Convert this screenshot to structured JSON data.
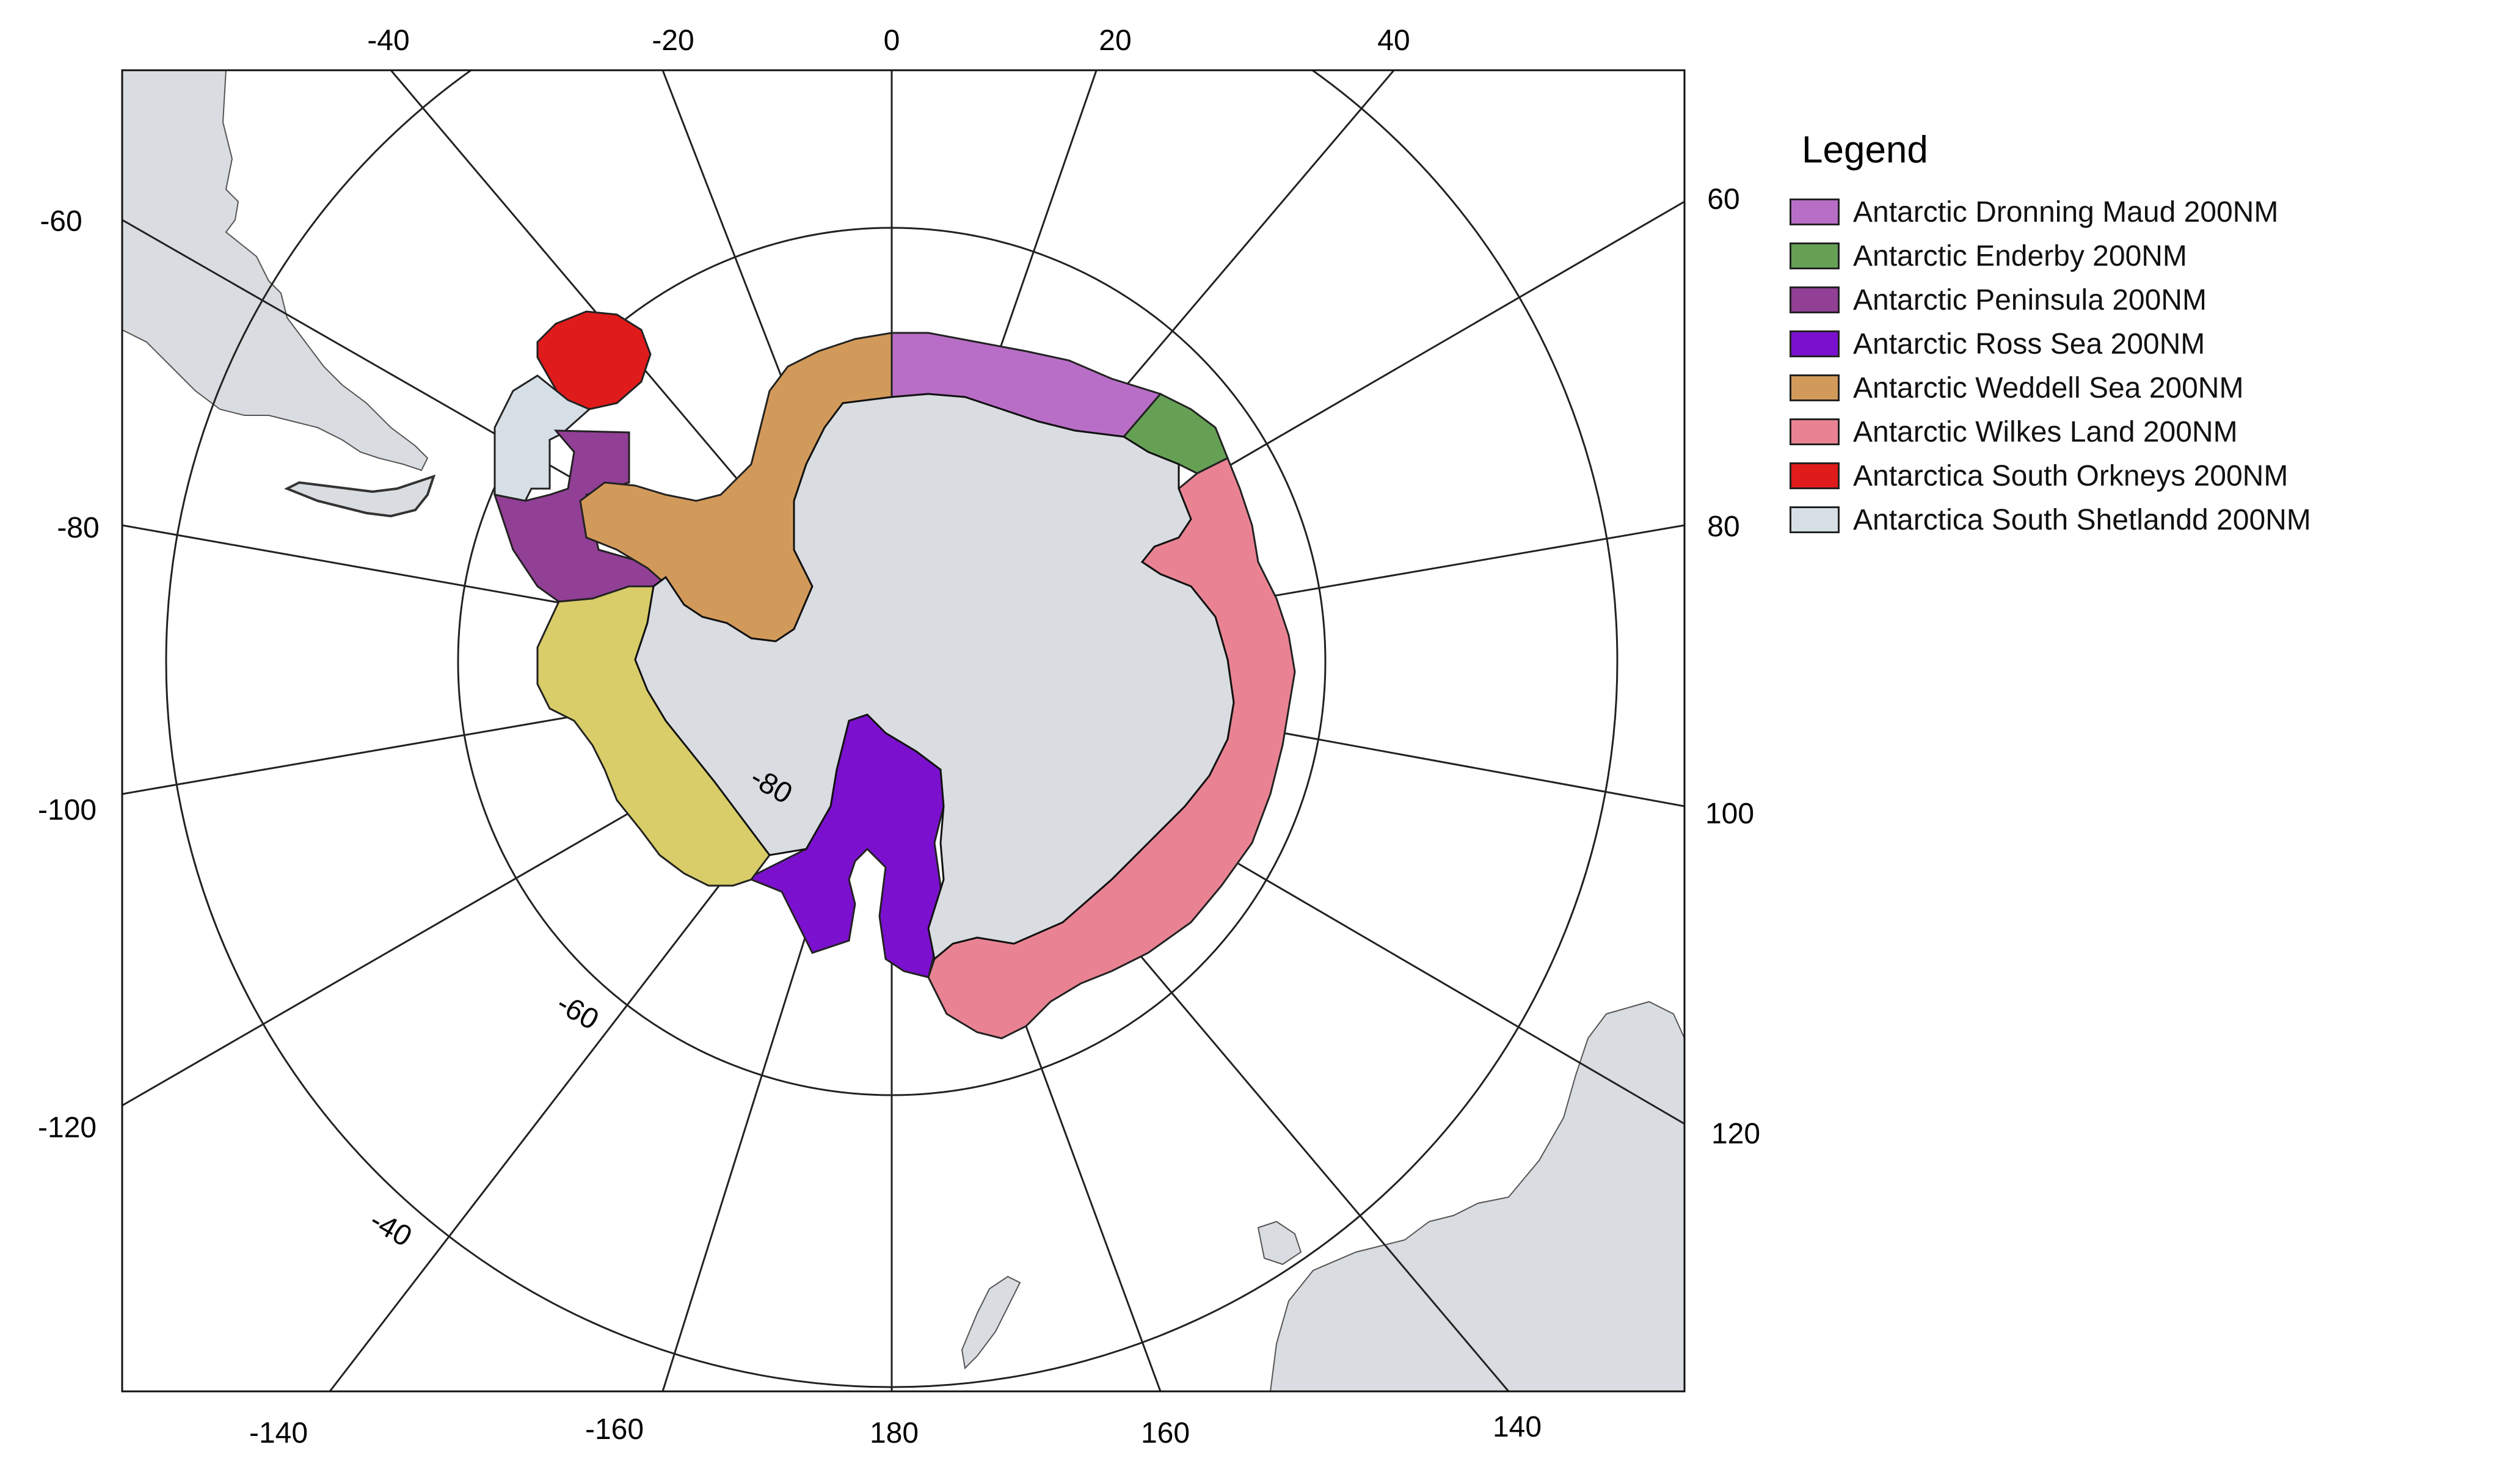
{
  "map": {
    "projection": "south-polar-stereographic",
    "top_ticks": [
      "-40",
      "-20",
      "0",
      "20",
      "40"
    ],
    "left_ticks": [
      "-60",
      "-80",
      "-100",
      "-120"
    ],
    "right_ticks": [
      "60",
      "80",
      "100",
      "120"
    ],
    "bottom_ticks": [
      "-140",
      "-160",
      "180",
      "160",
      "140"
    ],
    "interior_ticks": [
      "-80",
      "-60",
      "-40"
    ],
    "colors": {
      "land": "#d9dce0",
      "ocean": "#ffffff",
      "graticule": "#222222",
      "unlabeled_zone": "#d8cd68"
    }
  },
  "legend": {
    "title": "Legend",
    "items": [
      {
        "label": "Antarctic Dronning Maud 200NM",
        "color": "#b86ec6"
      },
      {
        "label": "Antarctic Enderby 200NM",
        "color": "#66a055"
      },
      {
        "label": "Antarctic Peninsula 200NM",
        "color": "#923f96"
      },
      {
        "label": "Antarctic Ross Sea 200NM",
        "color": "#7b10cf"
      },
      {
        "label": "Antarctic Weddell Sea 200NM",
        "color": "#d29a5a"
      },
      {
        "label": "Antarctic Wilkes Land 200NM",
        "color": "#e98393"
      },
      {
        "label": "Antarctica South Orkneys 200NM",
        "color": "#e01b1b"
      },
      {
        "label": "Antarctica South Shetlandd 200NM",
        "color": "#d6dfe6"
      }
    ]
  }
}
